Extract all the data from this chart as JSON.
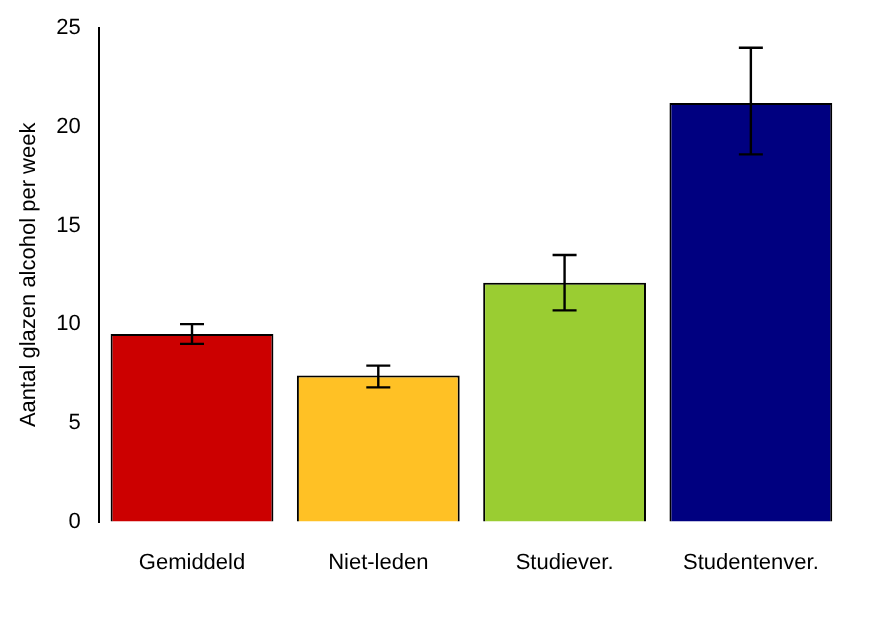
{
  "chart_data": {
    "type": "bar",
    "ylabel": "Aantal glazen alcohol per week",
    "categories": [
      "Gemiddeld",
      "Niet-leden",
      "Studiever.",
      "Studentenver."
    ],
    "values": [
      9.5,
      7.4,
      12.1,
      21.2
    ],
    "colors": [
      "#cc0000",
      "#ffc125",
      "#9acd32",
      "#000080"
    ],
    "errors": [
      [
        9.0,
        10.0
      ],
      [
        6.8,
        7.9
      ],
      [
        10.7,
        13.5
      ],
      [
        18.6,
        24.0
      ]
    ],
    "ylim": [
      0,
      25
    ],
    "yticks": [
      0,
      5,
      10,
      15,
      20,
      25
    ],
    "grid": false,
    "legend": false
  }
}
